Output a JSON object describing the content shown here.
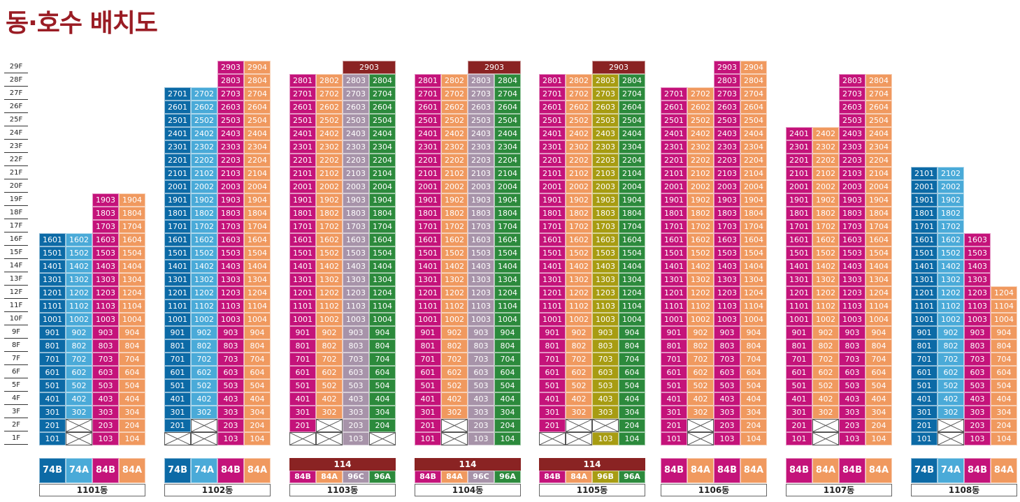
{
  "title": "동·호수 배치도",
  "floors": [
    "29F",
    "28F",
    "27F",
    "26F",
    "25F",
    "24F",
    "23F",
    "22F",
    "21F",
    "20F",
    "19F",
    "18F",
    "17F",
    "16F",
    "15F",
    "14F",
    "13F",
    "12F",
    "11F",
    "10F",
    "9F",
    "8F",
    "7F",
    "6F",
    "5F",
    "4F",
    "3F",
    "2F",
    "1F"
  ],
  "colors": {
    "blue": "#0c6aa6",
    "lightblue": "#4aaad8",
    "magenta": "#c4137a",
    "orange": "#f0995f",
    "gray": "#a793a9",
    "green": "#2c8a3c",
    "olive": "#a79c12",
    "maroon": "#8a2323"
  },
  "buildings": [
    {
      "name": "1101동",
      "cols": [
        {
          "line": "01",
          "color": "blue",
          "min": 1,
          "max": 16,
          "empty": []
        },
        {
          "line": "02",
          "color": "lightblue",
          "min": 1,
          "max": 16,
          "empty": [
            1,
            2
          ]
        },
        {
          "line": "03",
          "color": "magenta",
          "min": 1,
          "max": 19,
          "empty": []
        },
        {
          "line": "04",
          "color": "orange",
          "min": 1,
          "max": 19,
          "empty": []
        }
      ],
      "penthouse": null,
      "types_top": null,
      "types": [
        {
          "label": "74B",
          "color": "blue"
        },
        {
          "label": "74A",
          "color": "lightblue"
        },
        {
          "label": "84B",
          "color": "magenta"
        },
        {
          "label": "84A",
          "color": "orange"
        }
      ]
    },
    {
      "name": "1102동",
      "cols": [
        {
          "line": "01",
          "color": "blue",
          "min": 1,
          "max": 27,
          "empty": [
            1
          ]
        },
        {
          "line": "02",
          "color": "lightblue",
          "min": 1,
          "max": 27,
          "empty": [
            1,
            2
          ]
        },
        {
          "line": "03",
          "color": "magenta",
          "min": 1,
          "max": 29,
          "empty": []
        },
        {
          "line": "04",
          "color": "orange",
          "min": 1,
          "max": 29,
          "empty": []
        }
      ],
      "penthouse": null,
      "types_top": null,
      "types": [
        {
          "label": "74B",
          "color": "blue"
        },
        {
          "label": "74A",
          "color": "lightblue"
        },
        {
          "label": "84B",
          "color": "magenta"
        },
        {
          "label": "84A",
          "color": "orange"
        }
      ]
    },
    {
      "name": "1103동",
      "cols": [
        {
          "line": "01",
          "color": "magenta",
          "min": 1,
          "max": 28,
          "empty": [
            1
          ]
        },
        {
          "line": "02",
          "color": "orange",
          "min": 1,
          "max": 28,
          "empty": [
            1,
            2
          ]
        },
        {
          "line": "03",
          "color": "gray",
          "min": 1,
          "max": 28,
          "empty": []
        },
        {
          "line": "04",
          "color": "green",
          "min": 1,
          "max": 28,
          "empty": [
            1
          ]
        }
      ],
      "penthouse": {
        "label": "2903",
        "span": [
          2,
          3
        ]
      },
      "types_top": {
        "label": "114",
        "span": [
          0,
          3
        ]
      },
      "types": [
        {
          "label": "84B",
          "color": "magenta"
        },
        {
          "label": "84A",
          "color": "orange"
        },
        {
          "label": "96C",
          "color": "gray"
        },
        {
          "label": "96A",
          "color": "green"
        }
      ]
    },
    {
      "name": "1104동",
      "cols": [
        {
          "line": "01",
          "color": "magenta",
          "min": 1,
          "max": 28,
          "empty": []
        },
        {
          "line": "02",
          "color": "orange",
          "min": 1,
          "max": 28,
          "empty": [
            1,
            2
          ]
        },
        {
          "line": "03",
          "color": "gray",
          "min": 1,
          "max": 28,
          "empty": []
        },
        {
          "line": "04",
          "color": "green",
          "min": 1,
          "max": 28,
          "empty": []
        }
      ],
      "penthouse": {
        "label": "2903",
        "span": [
          2,
          3
        ]
      },
      "types_top": {
        "label": "114",
        "span": [
          0,
          3
        ]
      },
      "types": [
        {
          "label": "84B",
          "color": "magenta"
        },
        {
          "label": "84A",
          "color": "orange"
        },
        {
          "label": "96C",
          "color": "gray"
        },
        {
          "label": "96A",
          "color": "green"
        }
      ]
    },
    {
      "name": "1105동",
      "cols": [
        {
          "line": "01",
          "color": "magenta",
          "min": 1,
          "max": 28,
          "empty": [
            1
          ]
        },
        {
          "line": "02",
          "color": "orange",
          "min": 1,
          "max": 28,
          "empty": [
            1,
            2
          ]
        },
        {
          "line": "03",
          "color": "olive",
          "min": 1,
          "max": 28,
          "empty": [
            2
          ]
        },
        {
          "line": "04",
          "color": "green",
          "min": 1,
          "max": 28,
          "empty": []
        }
      ],
      "penthouse": {
        "label": "2903",
        "span": [
          2,
          3
        ]
      },
      "types_top": {
        "label": "114",
        "span": [
          0,
          3
        ]
      },
      "types": [
        {
          "label": "84B",
          "color": "magenta"
        },
        {
          "label": "84A",
          "color": "orange"
        },
        {
          "label": "96B",
          "color": "olive"
        },
        {
          "label": "96A",
          "color": "green"
        }
      ]
    },
    {
      "name": "1106동",
      "cols": [
        {
          "line": "01",
          "color": "magenta",
          "min": 1,
          "max": 27,
          "empty": []
        },
        {
          "line": "02",
          "color": "orange",
          "min": 1,
          "max": 27,
          "empty": [
            1,
            2
          ]
        },
        {
          "line": "03",
          "color": "magenta",
          "min": 1,
          "max": 29,
          "empty": []
        },
        {
          "line": "04",
          "color": "orange",
          "min": 1,
          "max": 29,
          "empty": []
        }
      ],
      "penthouse": null,
      "types_top": null,
      "types": [
        {
          "label": "84B",
          "color": "magenta"
        },
        {
          "label": "84A",
          "color": "orange"
        },
        {
          "label": "84B",
          "color": "magenta"
        },
        {
          "label": "84A",
          "color": "orange"
        }
      ]
    },
    {
      "name": "1107동",
      "cols": [
        {
          "line": "01",
          "color": "magenta",
          "min": 1,
          "max": 24,
          "empty": []
        },
        {
          "line": "02",
          "color": "orange",
          "min": 1,
          "max": 24,
          "empty": [
            1,
            2
          ]
        },
        {
          "line": "03",
          "color": "magenta",
          "min": 1,
          "max": 28,
          "empty": []
        },
        {
          "line": "04",
          "color": "orange",
          "min": 1,
          "max": 28,
          "empty": []
        }
      ],
      "penthouse": null,
      "types_top": null,
      "types": [
        {
          "label": "84B",
          "color": "magenta"
        },
        {
          "label": "84A",
          "color": "orange"
        },
        {
          "label": "84B",
          "color": "magenta"
        },
        {
          "label": "84A",
          "color": "orange"
        }
      ]
    },
    {
      "name": "1108동",
      "cols": [
        {
          "line": "01",
          "color": "blue",
          "min": 1,
          "max": 21,
          "empty": []
        },
        {
          "line": "02",
          "color": "lightblue",
          "min": 1,
          "max": 21,
          "empty": [
            1,
            2
          ]
        },
        {
          "line": "03",
          "color": "magenta",
          "min": 1,
          "max": 16,
          "empty": []
        },
        {
          "line": "04",
          "color": "orange",
          "min": 1,
          "max": 12,
          "empty": []
        }
      ],
      "penthouse": null,
      "types_top": null,
      "types": [
        {
          "label": "74B",
          "color": "blue"
        },
        {
          "label": "74A",
          "color": "lightblue"
        },
        {
          "label": "84B",
          "color": "magenta"
        },
        {
          "label": "84A",
          "color": "orange"
        }
      ]
    }
  ]
}
